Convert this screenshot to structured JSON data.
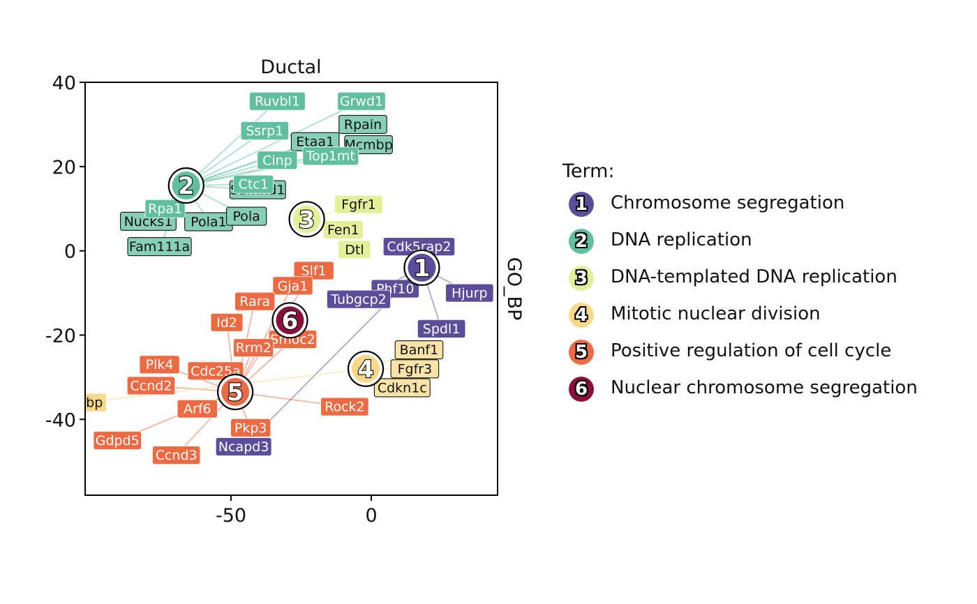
{
  "chart_data": {
    "type": "scatter",
    "title": "Ductal",
    "strip_label": "GO_BP",
    "xlabel": "",
    "ylabel": "",
    "xlim": [
      -102,
      45
    ],
    "ylim": [
      -58,
      40
    ],
    "x_ticks": [
      -50,
      0
    ],
    "y_ticks": [
      40,
      20,
      0,
      -20,
      -40
    ],
    "grid": false,
    "legend_position": "right",
    "legend_title": "Term:",
    "terms": [
      {
        "id": 1,
        "name": "Chromosome segregation",
        "color": "#5C4D9A",
        "center": [
          18,
          -4
        ]
      },
      {
        "id": 2,
        "name": "DNA replication",
        "color": "#5FBF9F",
        "center": [
          -66,
          15.5
        ]
      },
      {
        "id": 3,
        "name": "DNA-templated DNA replication",
        "color": "#E4EF9A",
        "center": [
          -23,
          7.5
        ]
      },
      {
        "id": 4,
        "name": "Mitotic nuclear division",
        "color": "#F8D98A",
        "center": [
          -2,
          -28
        ]
      },
      {
        "id": 5,
        "name": "Positive regulation of cell cycle",
        "color": "#EE6A43",
        "center": [
          -48.5,
          -33.5
        ]
      },
      {
        "id": 6,
        "name": "Nuclear chromosome segregation",
        "color": "#8A0F3A",
        "center": [
          -29,
          -16.5
        ]
      }
    ],
    "genes": [
      {
        "label": "Rpain",
        "x": -3,
        "y": 30,
        "term": 2,
        "style": "outline"
      },
      {
        "label": "Mcmbp",
        "x": -1,
        "y": 25.2,
        "term": 2,
        "style": "outline"
      },
      {
        "label": "Etaa1",
        "x": -20,
        "y": 25.9,
        "term": 2,
        "style": "outline"
      },
      {
        "label": "Nucks1",
        "x": -79.5,
        "y": 7,
        "term": 2,
        "style": "outline"
      },
      {
        "label": "Pola1",
        "x": -58,
        "y": 6.9,
        "term": 2,
        "style": "outline"
      },
      {
        "label": "Pola",
        "x": -44.5,
        "y": 8.2,
        "term": 2,
        "style": "outline"
      },
      {
        "label": "Samhd1",
        "x": -40.5,
        "y": 14.5,
        "term": 2,
        "style": "outline"
      },
      {
        "label": "Fam111a",
        "x": -75.5,
        "y": 1,
        "term": 2,
        "style": "outline"
      },
      {
        "label": "Ruvbl1",
        "x": -33.5,
        "y": 35.5,
        "term": 2,
        "style": "filled"
      },
      {
        "label": "Grwd1",
        "x": -3.5,
        "y": 35.5,
        "term": 2,
        "style": "filled"
      },
      {
        "label": "Ssrp1",
        "x": -38,
        "y": 28.5,
        "term": 2,
        "style": "filled"
      },
      {
        "label": "Top1mt",
        "x": -14.5,
        "y": 22.5,
        "term": 2,
        "style": "filled"
      },
      {
        "label": "Cinp",
        "x": -33.5,
        "y": 21.5,
        "term": 2,
        "style": "filled"
      },
      {
        "label": "Ctc1",
        "x": -42,
        "y": 15.8,
        "term": 2,
        "style": "filled"
      },
      {
        "label": "Rpa1",
        "x": -73.5,
        "y": 10,
        "term": 2,
        "style": "filled"
      },
      {
        "label": "Fgfr1",
        "x": -4.5,
        "y": 11,
        "term": 3,
        "style": "filled"
      },
      {
        "label": "Fen1",
        "x": -10,
        "y": 5,
        "term": 3,
        "style": "filled"
      },
      {
        "label": "Dtl",
        "x": -6,
        "y": 0.3,
        "term": 3,
        "style": "filled"
      },
      {
        "label": "Cdk5rap2",
        "x": 17,
        "y": 1,
        "term": 1,
        "style": "filled"
      },
      {
        "label": "Phf10",
        "x": 8.5,
        "y": -9,
        "term": 1,
        "style": "filled"
      },
      {
        "label": "Hjurp",
        "x": 35,
        "y": -10,
        "term": 1,
        "style": "filled"
      },
      {
        "label": "Tubgcp2",
        "x": -4.5,
        "y": -11.5,
        "term": 1,
        "style": "filled"
      },
      {
        "label": "Spdl1",
        "x": 25,
        "y": -18.5,
        "term": 1,
        "style": "filled"
      },
      {
        "label": "Ncapd3",
        "x": -45.5,
        "y": -46.5,
        "term": 1,
        "style": "filled"
      },
      {
        "label": "Slf1",
        "x": -20.5,
        "y": -4.7,
        "term": 5,
        "style": "filled"
      },
      {
        "label": "Gja1",
        "x": -28,
        "y": -8.3,
        "term": 5,
        "style": "filled"
      },
      {
        "label": "Rara",
        "x": -41.5,
        "y": -12,
        "term": 5,
        "style": "filled"
      },
      {
        "label": "Id2",
        "x": -51.5,
        "y": -17,
        "term": 5,
        "style": "filled"
      },
      {
        "label": "Smoc2",
        "x": -28,
        "y": -21,
        "term": 5,
        "style": "filled"
      },
      {
        "label": "Rrm2",
        "x": -42,
        "y": -23,
        "term": 5,
        "style": "filled"
      },
      {
        "label": "Cdc25a",
        "x": -55.5,
        "y": -28.5,
        "term": 5,
        "style": "filled"
      },
      {
        "label": "Plk4",
        "x": -75.5,
        "y": -27,
        "term": 5,
        "style": "filled"
      },
      {
        "label": "Ccnd2",
        "x": -78.5,
        "y": -32,
        "term": 5,
        "style": "filled"
      },
      {
        "label": "Arf6",
        "x": -62,
        "y": -37.5,
        "term": 5,
        "style": "filled"
      },
      {
        "label": "Rock2",
        "x": -9.5,
        "y": -37,
        "term": 5,
        "style": "filled"
      },
      {
        "label": "Pkp3",
        "x": -43,
        "y": -42,
        "term": 5,
        "style": "filled"
      },
      {
        "label": "Gdpd5",
        "x": -90.5,
        "y": -45,
        "term": 5,
        "style": "filled"
      },
      {
        "label": "Ccnd3",
        "x": -69.5,
        "y": -48.5,
        "term": 5,
        "style": "filled"
      },
      {
        "label": "Banf1",
        "x": 17,
        "y": -23.5,
        "term": 4,
        "style": "outline"
      },
      {
        "label": "Fgfr3",
        "x": 15.5,
        "y": -28,
        "term": 4,
        "style": "outline"
      },
      {
        "label": "Cdkn1c",
        "x": 11,
        "y": -32.5,
        "term": 4,
        "style": "outline"
      },
      {
        "label": "Pebp",
        "x": -101.5,
        "y": -36,
        "term": 4,
        "style": "filled"
      }
    ]
  },
  "legend": {
    "title": "Term:",
    "items": [
      {
        "num": "1",
        "label": "Chromosome segregation",
        "color": "#5C4D9A"
      },
      {
        "num": "2",
        "label": "DNA replication",
        "color": "#5FBF9F"
      },
      {
        "num": "3",
        "label": "DNA-templated DNA replication",
        "color": "#E4EF9A"
      },
      {
        "num": "4",
        "label": "Mitotic nuclear division",
        "color": "#F8D98A"
      },
      {
        "num": "5",
        "label": "Positive regulation of cell cycle",
        "color": "#EE6A43"
      },
      {
        "num": "6",
        "label": "Nuclear chromosome segregation",
        "color": "#8A0F3A"
      }
    ]
  }
}
